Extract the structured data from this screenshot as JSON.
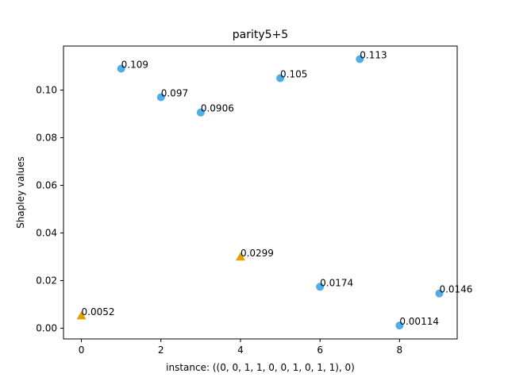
{
  "chart_data": {
    "type": "scatter",
    "title": "parity5+5",
    "xlabel": "instance: ((0, 0, 1, 1, 0, 0, 1, 0, 1, 1), 0)",
    "ylabel": "Shapley values",
    "xlim": [
      -0.45,
      9.45
    ],
    "ylim": [
      -0.0045,
      0.1185
    ],
    "xticks": [
      0,
      2,
      4,
      6,
      8
    ],
    "xtick_labels": [
      "0",
      "2",
      "4",
      "6",
      "8"
    ],
    "yticks": [
      0.0,
      0.02,
      0.04,
      0.06,
      0.08,
      0.1
    ],
    "ytick_labels": [
      "0.00",
      "0.02",
      "0.04",
      "0.06",
      "0.08",
      "0.10"
    ],
    "grid": false,
    "series": [
      {
        "marker": "circle",
        "color": "#4daee8",
        "points": [
          {
            "x": 1,
            "y": 0.109,
            "label": "0.109"
          },
          {
            "x": 2,
            "y": 0.097,
            "label": "0.097"
          },
          {
            "x": 3,
            "y": 0.0906,
            "label": "0.0906"
          },
          {
            "x": 5,
            "y": 0.105,
            "label": "0.105"
          },
          {
            "x": 6,
            "y": 0.0174,
            "label": "0.0174"
          },
          {
            "x": 7,
            "y": 0.113,
            "label": "0.113"
          },
          {
            "x": 8,
            "y": 0.00114,
            "label": "0.00114"
          },
          {
            "x": 9,
            "y": 0.0146,
            "label": "0.0146"
          }
        ]
      },
      {
        "marker": "triangle",
        "color": "#e69f00",
        "points": [
          {
            "x": 0,
            "y": 0.0052,
            "label": "0.0052"
          },
          {
            "x": 4,
            "y": 0.0299,
            "label": "0.0299"
          }
        ]
      }
    ]
  }
}
